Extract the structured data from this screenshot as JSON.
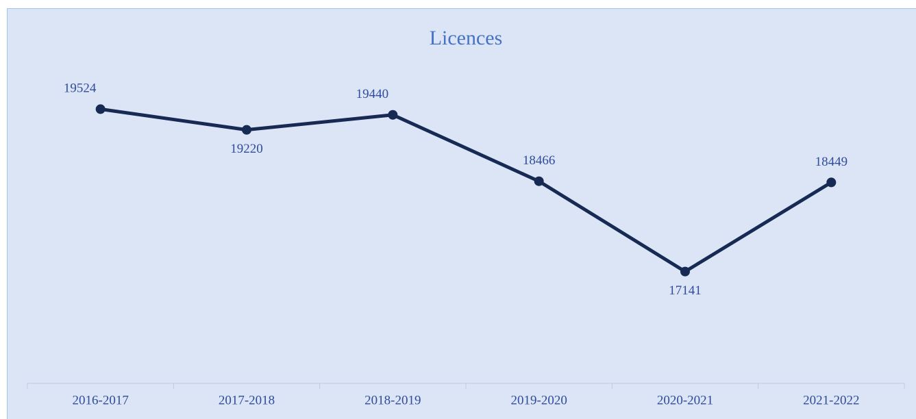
{
  "chart_data": {
    "type": "line",
    "title": "Licences",
    "categories": [
      "2016-2017",
      "2017-2018",
      "2018-2019",
      "2019-2020",
      "2020-2021",
      "2021-2022"
    ],
    "values": [
      19524,
      19220,
      19440,
      18466,
      17141,
      18449
    ],
    "color": "#172a54",
    "ylim": [
      15500,
      20000
    ]
  }
}
